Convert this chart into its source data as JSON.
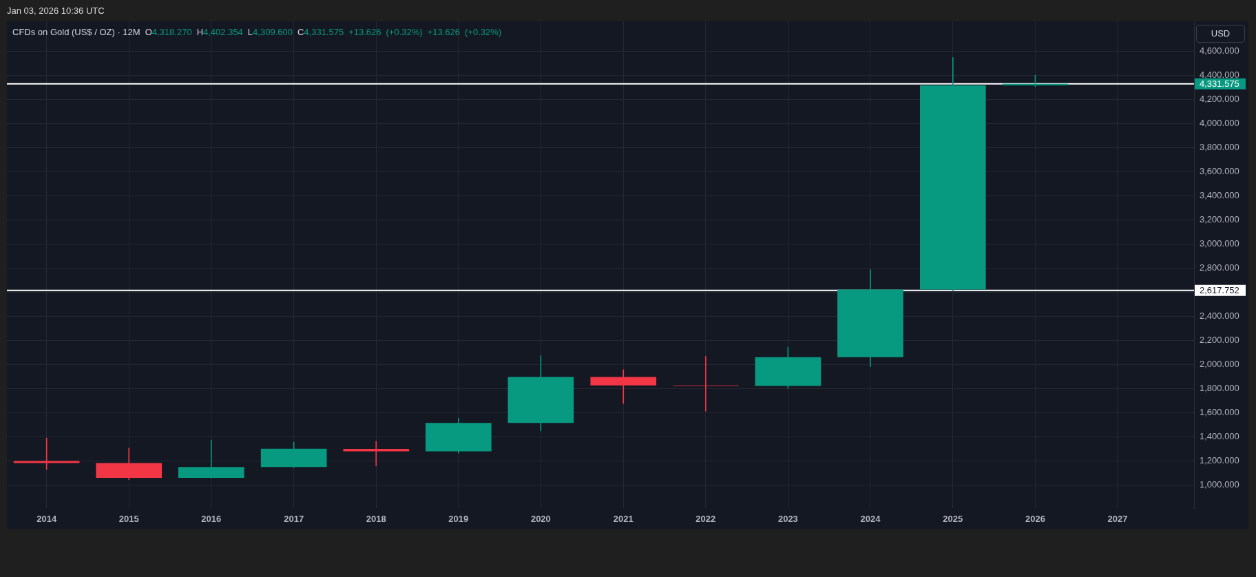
{
  "chart_data": {
    "type": "candlestick",
    "title": "CFDs on Gold (US$ / OZ) · 12M",
    "subtitle": "O4,318.270 H4,402.354 L4,309.600 C4,331.575 +13.626 (+0.32%) +13.626 (+0.32%)",
    "ylabel": "USD",
    "annotations": [
      "Jan 03, 2026 10:36 UTC"
    ],
    "x": [
      "2014",
      "2015",
      "2016",
      "2017",
      "2018",
      "2019",
      "2020",
      "2021",
      "2022",
      "2023",
      "2024",
      "2025",
      "2026"
    ],
    "ohlc": [
      [
        1202,
        1392,
        1132,
        1184
      ],
      [
        1184,
        1308,
        1046,
        1061
      ],
      [
        1061,
        1375,
        1060,
        1151
      ],
      [
        1151,
        1358,
        1146,
        1303
      ],
      [
        1302,
        1366,
        1160,
        1282
      ],
      [
        1282,
        1557,
        1266,
        1517
      ],
      [
        1517,
        2075,
        1451,
        1898
      ],
      [
        1898,
        1959,
        1677,
        1829
      ],
      [
        1829,
        2070,
        1615,
        1824
      ],
      [
        1824,
        2146,
        1805,
        2063
      ],
      [
        2063,
        2790,
        1984,
        2624
      ],
      [
        2624,
        4549,
        2614,
        4318
      ],
      [
        4318.27,
        4402.354,
        4309.6,
        4331.575
      ]
    ],
    "colors": [
      "#f23645",
      "#f23645",
      "#089981",
      "#089981",
      "#f23645",
      "#089981",
      "#089981",
      "#f23645",
      "#f23645",
      "#089981",
      "#089981",
      "#089981",
      "#089981"
    ],
    "xlim": [
      "2013-07-09",
      "2027-12-06"
    ],
    "xticks": [
      "2014",
      "2015",
      "2016",
      "2017",
      "2018",
      "2019",
      "2020",
      "2021",
      "2022",
      "2023",
      "2024",
      "2025",
      "2026",
      "2027"
    ],
    "ylim": [
      810,
      4850
    ],
    "yticks": [
      {
        "value": 1000,
        "label": "1,000.000"
      },
      {
        "value": 1200,
        "label": "1,200.000"
      },
      {
        "value": 1400,
        "label": "1,400.000"
      },
      {
        "value": 1600,
        "label": "1,600.000"
      },
      {
        "value": 1800,
        "label": "1,800.000"
      },
      {
        "value": 2000,
        "label": "2,000.000"
      },
      {
        "value": 2200,
        "label": "2,200.000"
      },
      {
        "value": 2400,
        "label": "2,400.000"
      },
      {
        "value": 2600,
        "label": null
      },
      {
        "value": 2800,
        "label": "2,800.000"
      },
      {
        "value": 3000,
        "label": "3,000.000"
      },
      {
        "value": 3200,
        "label": "3,200.000"
      },
      {
        "value": 3400,
        "label": "3,400.000"
      },
      {
        "value": 3600,
        "label": "3,600.000"
      },
      {
        "value": 3800,
        "label": "3,800.000"
      },
      {
        "value": 4000,
        "label": "4,000.000"
      },
      {
        "value": 4200,
        "label": "4,200.000"
      },
      {
        "value": 4400,
        "label": "4,400.000"
      },
      {
        "value": 4600,
        "label": "4,600.000"
      }
    ],
    "ref_lines": [
      {
        "axis": "y",
        "value": 4331.575,
        "label": "4,331.575",
        "color": "#ffffff"
      },
      {
        "axis": "y",
        "value": 2617.752,
        "label": "2,617.752",
        "color": "#ffffff"
      }
    ],
    "grid": true
  }
}
